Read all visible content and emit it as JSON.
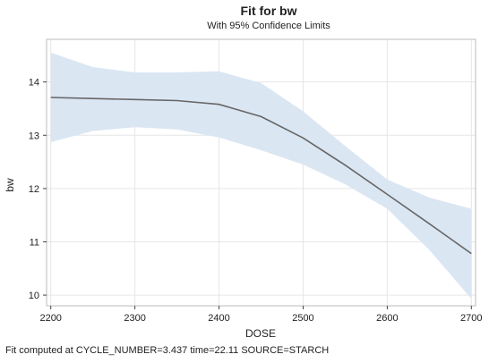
{
  "chart_data": {
    "type": "line",
    "title": "Fit for bw",
    "subtitle": "With 95% Confidence Limits",
    "xlabel": "DOSE",
    "ylabel": "bw",
    "xlim": [
      2195,
      2705
    ],
    "ylim": [
      9.8,
      14.8
    ],
    "x_ticks": [
      2200,
      2300,
      2400,
      2500,
      2600,
      2700
    ],
    "y_ticks": [
      10,
      11,
      12,
      13,
      14
    ],
    "grid": true,
    "legend": "none",
    "colors": {
      "band": "#dbe6f3",
      "line": "#666666",
      "grid": "#e6e6e6",
      "frame": "#bbbbbb"
    },
    "series": [
      {
        "type": "line",
        "x": [
          2200,
          2250,
          2300,
          2350,
          2400,
          2450,
          2500,
          2550,
          2600,
          2650,
          2700
        ],
        "y": [
          13.71,
          13.69,
          13.67,
          13.65,
          13.58,
          13.35,
          12.95,
          12.44,
          11.89,
          11.34,
          10.78
        ]
      },
      {
        "type": "band",
        "x": [
          2200,
          2250,
          2300,
          2350,
          2400,
          2450,
          2500,
          2550,
          2600,
          2650,
          2700
        ],
        "lower": [
          12.87,
          13.08,
          13.15,
          13.11,
          12.96,
          12.72,
          12.45,
          12.08,
          11.62,
          10.85,
          9.93
        ],
        "upper": [
          14.55,
          14.28,
          14.18,
          14.18,
          14.2,
          13.98,
          13.45,
          12.8,
          12.17,
          11.83,
          11.62
        ]
      }
    ]
  },
  "footnote": "Fit computed at CYCLE_NUMBER=3.437 time=22.11 SOURCE=STARCH"
}
